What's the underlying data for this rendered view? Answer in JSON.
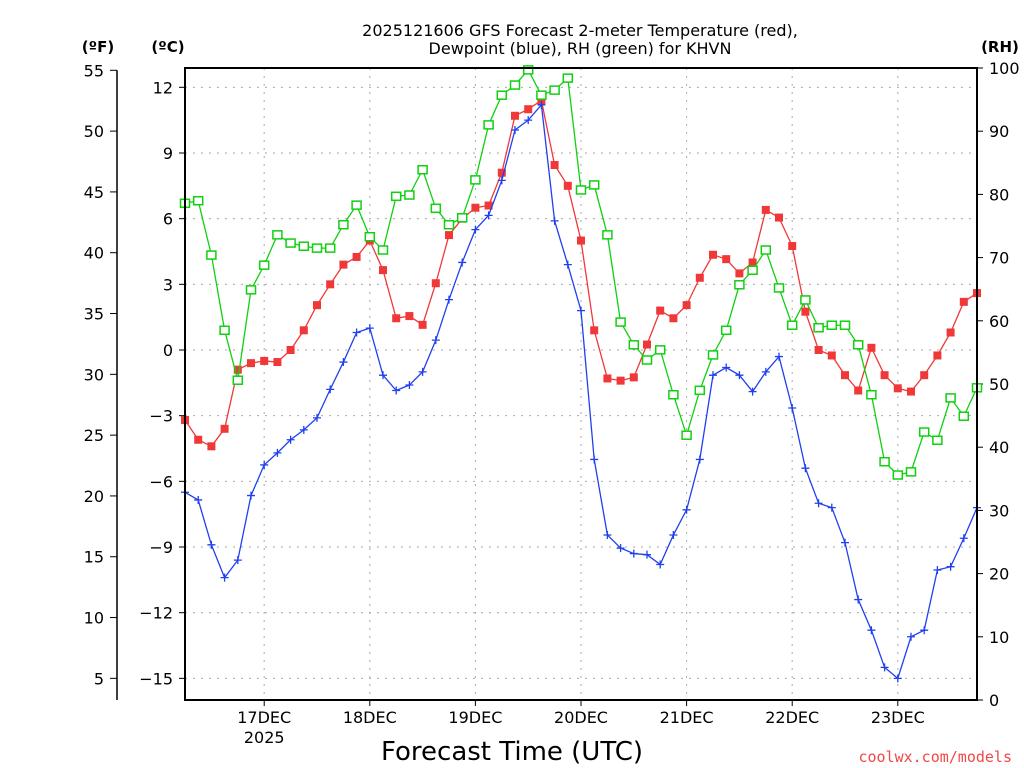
{
  "chart_data": {
    "type": "line",
    "title_lines": [
      "2025121606 GFS Forecast 2-meter Temperature (red),",
      "Dewpoint (blue), RH (green) for KHVN"
    ],
    "xlabel": "Forecast Time (UTC)",
    "unit_labels": {
      "fahrenheit": "(ºF)",
      "celsius": "(ºC)",
      "rh": "(RH)"
    },
    "watermark": "coolwx.com/models",
    "x_unit": "hours since 16DEC 06Z",
    "xlim": [
      0,
      180
    ],
    "x_ticks": [
      {
        "hour": 18,
        "label": "17DEC",
        "sub": "2025"
      },
      {
        "hour": 42,
        "label": "18DEC",
        "sub": ""
      },
      {
        "hour": 66,
        "label": "19DEC",
        "sub": ""
      },
      {
        "hour": 90,
        "label": "20DEC",
        "sub": ""
      },
      {
        "hour": 114,
        "label": "21DEC",
        "sub": ""
      },
      {
        "hour": 138,
        "label": "22DEC",
        "sub": ""
      },
      {
        "hour": 162,
        "label": "23DEC",
        "sub": ""
      }
    ],
    "celsius_axis": {
      "ylim": [
        -16.3,
        12.9
      ],
      "ticks": [
        12,
        9,
        6,
        3,
        0,
        -3,
        -6,
        -9,
        -12,
        -15
      ]
    },
    "fahrenheit_axis": {
      "ticks": [
        55,
        50,
        45,
        40,
        35,
        30,
        25,
        20,
        15,
        10,
        5
      ]
    },
    "rh_axis": {
      "ylim": [
        0,
        100
      ],
      "ticks": [
        0,
        10,
        20,
        30,
        40,
        50,
        60,
        70,
        80,
        90,
        100
      ]
    },
    "grid": true,
    "x": [
      0,
      3,
      6,
      9,
      12,
      15,
      18,
      21,
      24,
      27,
      30,
      33,
      36,
      39,
      42,
      45,
      48,
      51,
      54,
      57,
      60,
      63,
      66,
      69,
      72,
      75,
      78,
      81,
      84,
      87,
      90,
      93,
      96,
      99,
      102,
      105,
      108,
      111,
      114,
      117,
      120,
      123,
      126,
      129,
      132,
      135,
      138,
      141,
      144,
      147,
      150,
      153,
      156,
      159,
      162,
      165,
      168,
      171,
      174,
      177,
      180
    ],
    "series": [
      {
        "name": "Temperature (°C)",
        "axis": "celsius",
        "color": "#f03838",
        "marker": "filled-square",
        "values": [
          -3.2,
          -4.1,
          -4.4,
          -3.6,
          -0.9,
          -0.6,
          -0.5,
          -0.55,
          0,
          0.9,
          2.05,
          3.0,
          3.9,
          4.25,
          5.0,
          3.65,
          1.45,
          1.55,
          1.15,
          3.05,
          5.25,
          6.0,
          6.5,
          6.6,
          8.1,
          10.7,
          11.0,
          11.4,
          8.45,
          7.5,
          5.0,
          0.9,
          -1.3,
          -1.4,
          -1.25,
          0.25,
          1.8,
          1.45,
          2.05,
          3.3,
          4.35,
          4.15,
          3.5,
          4.0,
          6.4,
          6.05,
          4.75,
          1.75,
          0,
          -0.25,
          -1.15,
          -1.85,
          0.1,
          -1.15,
          -1.75,
          -1.9,
          -1.15,
          -0.25,
          0.8,
          2.2,
          2.6
        ]
      },
      {
        "name": "Dewpoint (°C)",
        "axis": "celsius",
        "color": "#2040f0",
        "marker": "plus",
        "values": [
          -6.5,
          -6.85,
          -8.9,
          -10.4,
          -9.6,
          -6.65,
          -5.25,
          -4.7,
          -4.1,
          -3.65,
          -3.1,
          -1.8,
          -0.55,
          0.8,
          1.0,
          -1.15,
          -1.85,
          -1.6,
          -1.0,
          0.45,
          2.3,
          4.0,
          5.5,
          6.15,
          7.75,
          10.05,
          10.5,
          11.2,
          5.9,
          3.9,
          1.8,
          -5.0,
          -8.45,
          -9.05,
          -9.3,
          -9.35,
          -9.8,
          -8.45,
          -7.3,
          -5.0,
          -1.15,
          -0.8,
          -1.15,
          -1.9,
          -1.0,
          -0.3,
          -2.65,
          -5.4,
          -7.0,
          -7.2,
          -8.8,
          -11.4,
          -12.8,
          -14.5,
          -15.0,
          -13.1,
          -12.8,
          -10.05,
          -9.9,
          -8.6,
          -7.2
        ]
      },
      {
        "name": "RH (%)",
        "axis": "rh",
        "color": "#10d010",
        "marker": "open-square",
        "values": [
          78.6,
          79,
          70.4,
          58.5,
          50.6,
          64.9,
          68.8,
          73.6,
          72.3,
          71.8,
          71.5,
          71.5,
          75.2,
          78.3,
          73.3,
          71.2,
          79.7,
          79.9,
          83.9,
          77.8,
          75.2,
          76.3,
          82.3,
          91,
          95.7,
          97.3,
          99.7,
          95.7,
          96.5,
          98.4,
          80.7,
          81.5,
          73.6,
          59.8,
          56.2,
          53.8,
          55.4,
          48.3,
          41.9,
          49,
          54.6,
          58.5,
          65.7,
          68,
          71.2,
          65.2,
          59.3,
          63.3,
          58.9,
          59.3,
          59.3,
          56.2,
          48.3,
          37.7,
          35.6,
          36.1,
          42.4,
          41.1,
          47.8,
          44.9,
          49.4
        ]
      }
    ]
  }
}
